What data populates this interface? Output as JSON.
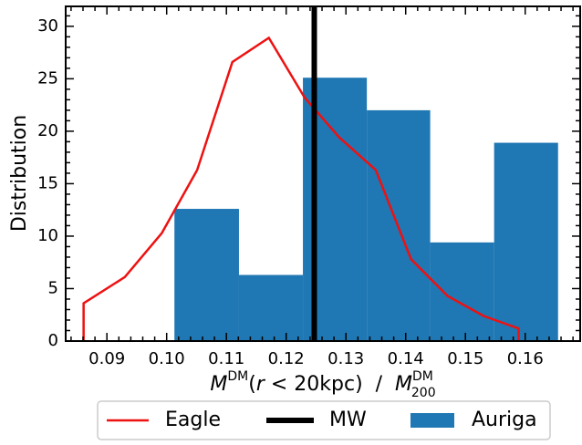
{
  "chart_data": {
    "type": "histogram",
    "xlabel": [
      "M",
      "DM",
      "(",
      "r",
      " < 20kpc)  /  ",
      "M",
      "DM",
      "200"
    ],
    "ylabel": "Distribution",
    "xlim": [
      0.0831,
      0.1692
    ],
    "ylim": [
      0,
      31.9
    ],
    "xticks": [
      0.09,
      {
        "value": 0.1,
        "label": "0.10"
      },
      0.11,
      0.12,
      0.13,
      0.14,
      0.15,
      0.16
    ],
    "yticks": [
      0,
      5,
      10,
      15,
      20,
      25,
      30
    ],
    "xminorticks": [
      0.084,
      0.086,
      0.088,
      0.092,
      0.094,
      0.096,
      0.098,
      0.102,
      0.104,
      0.106,
      0.108,
      0.112,
      0.114,
      0.116,
      0.118,
      0.122,
      0.124,
      0.126,
      0.128,
      0.132,
      0.134,
      0.136,
      0.138,
      0.142,
      0.144,
      0.146,
      0.148,
      0.152,
      0.154,
      0.156,
      0.158,
      0.162,
      0.164,
      0.166,
      0.168
    ],
    "yminorticks": [
      1,
      2,
      3,
      4,
      6,
      7,
      8,
      9,
      11,
      12,
      13,
      14,
      16,
      17,
      18,
      19,
      21,
      22,
      23,
      24,
      26,
      27,
      28,
      29,
      31
    ],
    "name": "Auriga",
    "color": "#1f77b4",
    "bins": [
      0.1013,
      0.1121,
      0.1228,
      0.1335,
      0.1441,
      0.1548,
      0.1655
    ],
    "values": [
      12.6,
      6.3,
      25.1,
      22.0,
      9.4,
      18.9
    ],
    "lines": [
      {
        "name": "Eagle",
        "color": "#ee1111",
        "x": [
          0.0861,
          0.0861,
          0.093,
          0.0992,
          0.1051,
          0.111,
          0.1171,
          0.1231,
          0.1289,
          0.135,
          0.1409,
          0.147,
          0.153,
          0.1589,
          0.1589
        ],
        "values": [
          0,
          3.6,
          6.1,
          10.3,
          16.3,
          26.6,
          28.9,
          23.2,
          19.4,
          16.3,
          7.8,
          4.3,
          2.4,
          1.2,
          0
        ]
      }
    ],
    "vlines": [
      {
        "name": "MW",
        "color": "#000000",
        "x": 0.1247
      }
    ],
    "legend": "bottom-outside"
  }
}
